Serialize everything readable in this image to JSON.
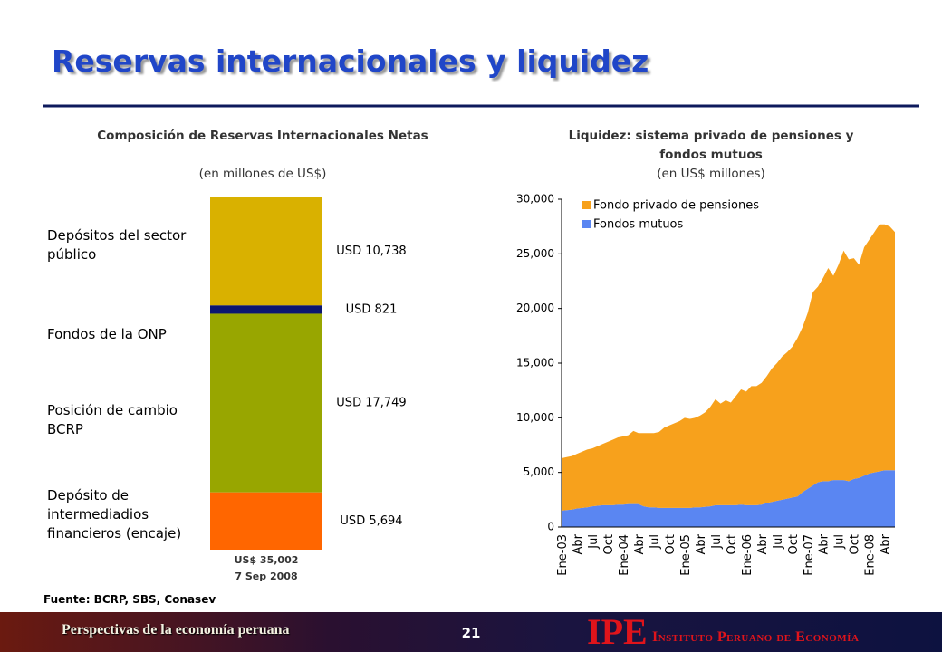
{
  "title": "Reservas internacionales y liquidez",
  "source": "Fuente: BCRP, SBS, Conasev",
  "footer": {
    "text": "Perspectivas de la economía peruana",
    "page_number": "21",
    "logo": "IPE",
    "institute": "Instituto Peruano de Economía"
  },
  "chart_data": [
    {
      "type": "stacked-bar",
      "title": "Composición de Reservas Internacionales Netas",
      "subtitle": "(en millones de US$)",
      "categories": [
        "Depósitos del sector público",
        "Fondos de la ONP",
        "Posición de cambio BCRP",
        "Depósito de intermediadios financieros (encaje)"
      ],
      "values": [
        10738,
        821,
        17749,
        5694
      ],
      "value_labels": [
        "USD 10,738",
        "USD 821",
        "USD 17,749",
        "USD 5,694"
      ],
      "colors": [
        "#d9b100",
        "#0b1670",
        "#98a600",
        "#ff6600"
      ],
      "total_label": "US$ 35,002",
      "date": "7 Sep 2008"
    },
    {
      "type": "stacked-area",
      "title": "Liquidez: sistema privado de pensiones y fondos mutuos",
      "subtitle": "(en US$ millones)",
      "categories": [
        "Ene-03",
        null,
        null,
        "Abr",
        null,
        null,
        "Jul",
        null,
        null,
        "Oct",
        null,
        null,
        "Ene-04",
        null,
        null,
        "Abr",
        null,
        null,
        "Jul",
        null,
        null,
        "Oct",
        null,
        null,
        "Ene-05",
        null,
        null,
        "Abr",
        null,
        null,
        "Jul",
        null,
        null,
        "Oct",
        null,
        null,
        "Ene-06",
        null,
        null,
        "Abr",
        null,
        null,
        "Jul",
        null,
        null,
        "Oct",
        null,
        null,
        "Ene-07",
        null,
        null,
        "Abr",
        null,
        null,
        "Jul",
        null,
        null,
        "Oct",
        null,
        null,
        "Ene-08",
        null,
        null,
        "Abr",
        null,
        null
      ],
      "series": [
        {
          "name": "Fondo privado de pensiones",
          "color": "#f7a11c",
          "values": [
            4800,
            4850,
            4900,
            5000,
            5150,
            5300,
            5300,
            5450,
            5600,
            5800,
            6000,
            6150,
            6250,
            6300,
            6700,
            6500,
            6700,
            6800,
            6800,
            6950,
            7350,
            7550,
            7750,
            7950,
            8250,
            8150,
            8200,
            8400,
            8650,
            9100,
            9700,
            9300,
            9600,
            9400,
            10000,
            10550,
            10400,
            10900,
            10900,
            11150,
            11600,
            12200,
            12600,
            13100,
            13400,
            13800,
            14500,
            15100,
            16100,
            17700,
            17900,
            18600,
            19500,
            18700,
            19700,
            21000,
            20300,
            20200,
            19500,
            20900,
            21400,
            22000,
            22600,
            22500,
            22300,
            21800
          ]
        },
        {
          "name": "Fondos mutuos",
          "color": "#5a86f2",
          "values": [
            1500,
            1550,
            1600,
            1700,
            1750,
            1800,
            1900,
            1950,
            2000,
            2000,
            2000,
            2050,
            2050,
            2100,
            2100,
            2100,
            1900,
            1800,
            1800,
            1750,
            1750,
            1750,
            1750,
            1750,
            1750,
            1750,
            1800,
            1800,
            1850,
            1900,
            2000,
            2000,
            2000,
            2000,
            2000,
            2050,
            2000,
            2000,
            2000,
            2050,
            2200,
            2300,
            2400,
            2500,
            2600,
            2700,
            2800,
            3200,
            3500,
            3800,
            4100,
            4200,
            4200,
            4300,
            4300,
            4300,
            4200,
            4400,
            4500,
            4700,
            4900,
            5000,
            5100,
            5200,
            5200,
            5200
          ]
        }
      ],
      "ylim": [
        0,
        30000
      ],
      "yticks": [
        0,
        {
          "value": 5000,
          "label": "5,000"
        },
        {
          "value": 10000,
          "label": "10,000"
        },
        {
          "value": 15000,
          "label": "15,000"
        },
        {
          "value": 20000,
          "label": "20,000"
        },
        {
          "value": 25000,
          "label": "25,000"
        },
        {
          "value": 30000,
          "label": "30,000"
        }
      ],
      "legend": "top-left"
    }
  ]
}
